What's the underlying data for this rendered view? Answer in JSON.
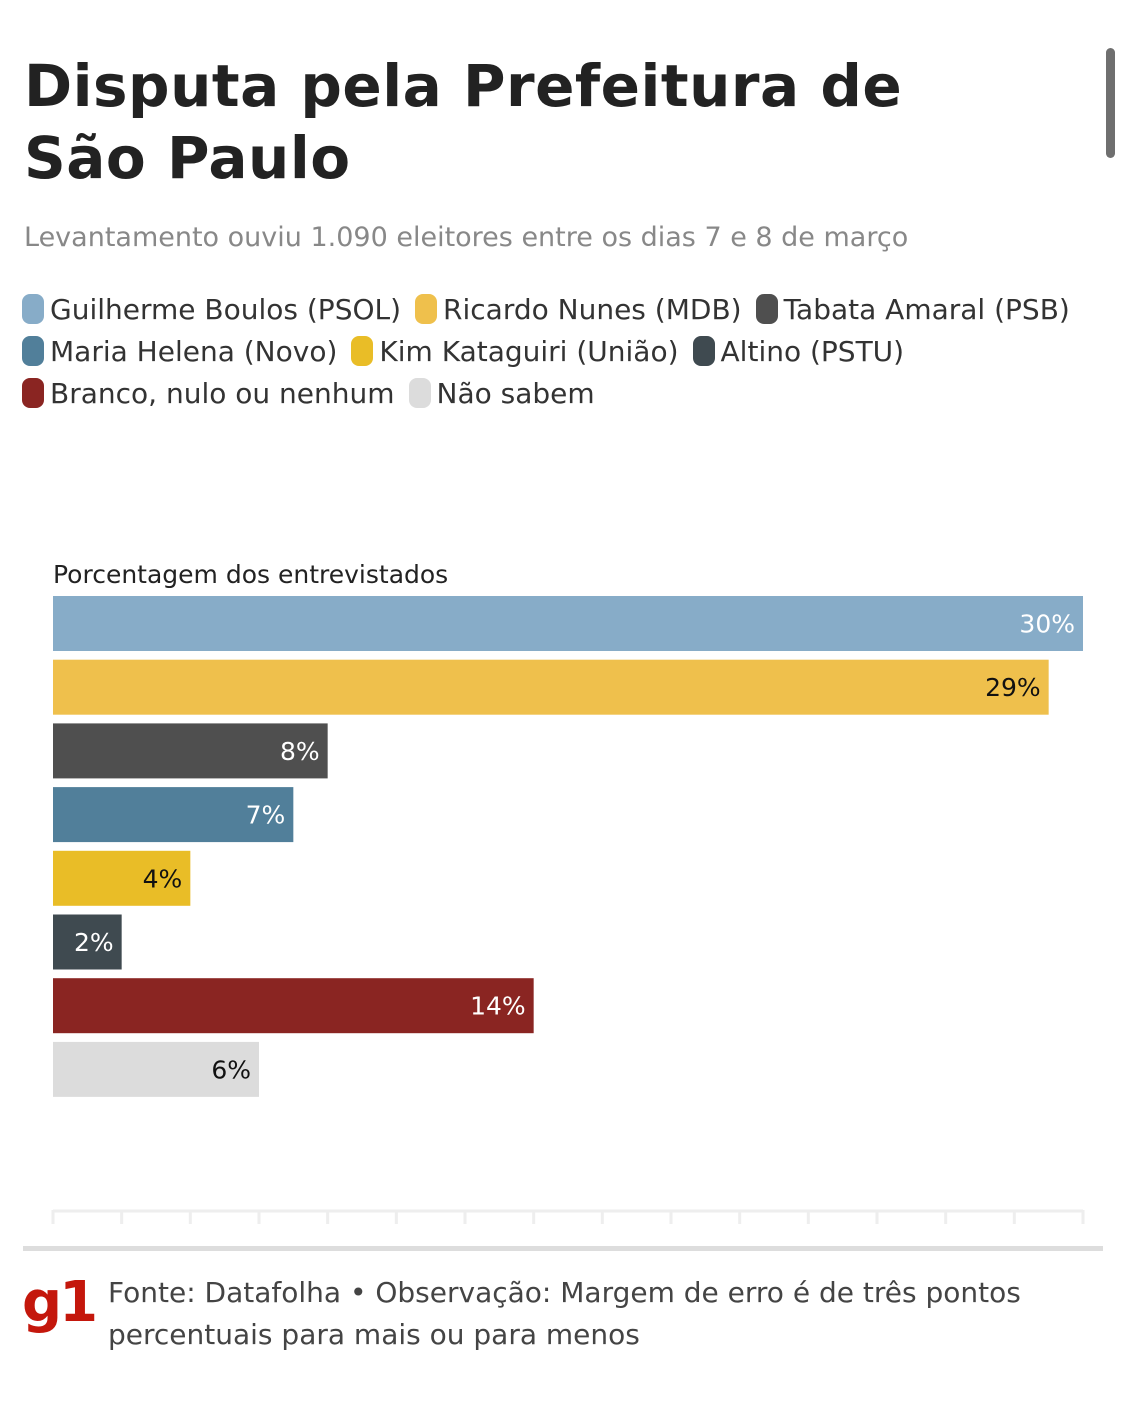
{
  "header": {
    "title": "Disputa pela Prefeitura de São Paulo",
    "subtitle": "Levantamento ouviu 1.090 eleitores entre os dias 7 e 8 de março"
  },
  "chart_data": {
    "type": "bar",
    "orientation": "horizontal",
    "title": "Disputa pela Prefeitura de São Paulo",
    "xlabel": "Porcentagem dos entrevistados",
    "xlim": [
      0,
      30
    ],
    "tick_step": 2,
    "categories": [
      "Guilherme Boulos (PSOL)",
      "Ricardo Nunes (MDB)",
      "Tabata Amaral (PSB)",
      "Maria Helena (Novo)",
      "Kim Kataguiri (União)",
      "Altino (PSTU)",
      "Branco, nulo ou nenhum",
      "Não sabem"
    ],
    "values": [
      30,
      29,
      8,
      7,
      4,
      2,
      14,
      6
    ],
    "labels": [
      "30%",
      "29%",
      "8%",
      "7%",
      "4%",
      "2%",
      "14%",
      "6%"
    ],
    "colors": [
      "#87acc8",
      "#efc04c",
      "#4f4f4f",
      "#517f9a",
      "#e9bd27",
      "#3f4a50",
      "#8a2522",
      "#dcdcdc"
    ],
    "label_colors": [
      "#ffffff",
      "#111111",
      "#ffffff",
      "#ffffff",
      "#111111",
      "#ffffff",
      "#ffffff",
      "#111111"
    ],
    "legend_placement": "top"
  },
  "footer": {
    "logo": "g1",
    "source": "Fonte: Datafolha • Observação: Margem de erro é de três pontos percentuais para mais ou para menos"
  }
}
